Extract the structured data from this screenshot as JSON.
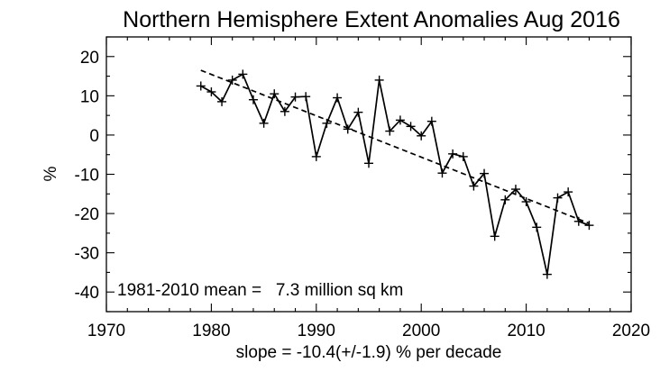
{
  "chart_data": {
    "type": "line",
    "title": "Northern Hemisphere Extent Anomalies Aug 2016",
    "xlabel": "slope = -10.4(+/-1.9) % per decade",
    "ylabel": "%",
    "xlim": [
      1970,
      2020
    ],
    "ylim": [
      -45,
      25
    ],
    "xticks": [
      1970,
      1980,
      1990,
      2000,
      2010,
      2020
    ],
    "yticks": [
      20,
      10,
      0,
      -10,
      -20,
      -30,
      -40
    ],
    "grid": false,
    "annotation": "1981-2010 mean =   7.3 million sq km",
    "series": [
      {
        "x": [
          1979,
          1980,
          1981,
          1982,
          1983,
          1984,
          1985,
          1986,
          1987,
          1988,
          1989,
          1990,
          1991,
          1992,
          1993,
          1994,
          1995,
          1996,
          1997,
          1998,
          1999,
          2000,
          2001,
          2002,
          2003,
          2004,
          2005,
          2006,
          2007,
          2008,
          2009,
          2010,
          2011,
          2012,
          2013,
          2014,
          2015,
          2016
        ],
        "values": [
          12.5,
          11.0,
          8.5,
          14.0,
          15.5,
          9.0,
          3.0,
          10.5,
          6.0,
          9.7,
          9.8,
          -5.5,
          3.0,
          9.5,
          1.5,
          5.8,
          -7.2,
          14.0,
          1.0,
          3.8,
          2.2,
          -0.2,
          3.5,
          -9.7,
          -4.8,
          -5.5,
          -13.0,
          -9.8,
          -25.8,
          -16.5,
          -13.8,
          -17.0,
          -23.5,
          -35.5,
          -16.0,
          -14.5,
          -22.0,
          -23.0
        ]
      }
    ],
    "trend_line": {
      "x": [
        1979,
        2016
      ],
      "values": [
        16.5,
        -22.5
      ],
      "style": "dashed"
    }
  }
}
